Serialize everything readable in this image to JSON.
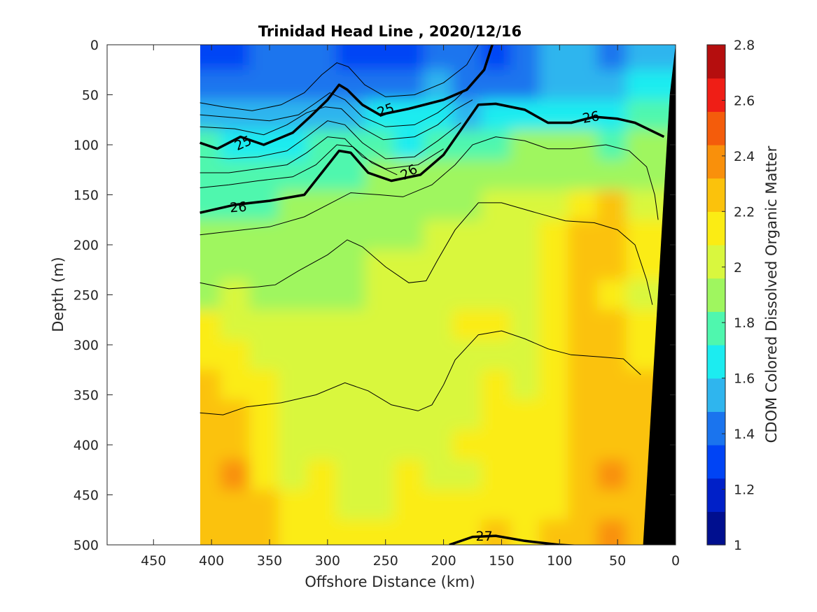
{
  "chart_data": {
    "type": "heatmap",
    "title": "Trinidad Head Line , 2020/12/16",
    "xlabel": "Offshore Distance (km)",
    "ylabel": "Depth (m)",
    "colorbar_label": "CDOM Colored Dissolved Organic Matter",
    "xlim": [
      490,
      0
    ],
    "ylim": [
      0,
      500
    ],
    "x_reversed": true,
    "y_reversed": true,
    "x_ticks": [
      450,
      400,
      350,
      300,
      250,
      200,
      150,
      100,
      50,
      0
    ],
    "x_tick_labels": [
      "450",
      "400",
      "350",
      "300",
      "250",
      "200",
      "150",
      "100",
      "50",
      "0"
    ],
    "y_ticks": [
      0,
      50,
      100,
      150,
      200,
      250,
      300,
      350,
      400,
      450,
      500
    ],
    "y_tick_labels": [
      "0",
      "50",
      "100",
      "150",
      "200",
      "250",
      "300",
      "350",
      "400",
      "450",
      "500"
    ],
    "colorbar_range": [
      1,
      2.8
    ],
    "colorbar_ticks": [
      1,
      1.2,
      1.4,
      1.6,
      1.8,
      2,
      2.2,
      2.4,
      2.6,
      2.8
    ],
    "colorbar_tick_labels": [
      "1",
      "1.2",
      "1.4",
      "1.6",
      "1.8",
      "2",
      "2.2",
      "2.4",
      "2.6",
      "2.8"
    ],
    "colorbar_colors": [
      "#000f8f",
      "#0020c8",
      "#0044f5",
      "#1a74ee",
      "#2fb5ee",
      "#1cecf0",
      "#4ff7ae",
      "#9ff65f",
      "#d9f73e",
      "#fbec14",
      "#fbc20c",
      "#f9900b",
      "#f45c0b",
      "#ef1e16",
      "#b50e0e"
    ],
    "data_extent_km": [
      410,
      0
    ],
    "value_grid": {
      "x_km": [
        405,
        380,
        355,
        330,
        305,
        280,
        255,
        230,
        205,
        180,
        155,
        130,
        105,
        80,
        55,
        30
      ],
      "depth_m": [
        10,
        40,
        70,
        100,
        130,
        160,
        190,
        220,
        250,
        280,
        310,
        340,
        370,
        400,
        430,
        460,
        490
      ],
      "values": [
        [
          1.35,
          1.35,
          1.4,
          1.45,
          1.45,
          1.35,
          1.3,
          1.35,
          1.4,
          1.4,
          1.35,
          1.4,
          1.5,
          1.5,
          1.45,
          1.5
        ],
        [
          1.4,
          1.4,
          1.4,
          1.45,
          1.45,
          1.45,
          1.45,
          1.45,
          1.5,
          1.45,
          1.45,
          1.45,
          1.5,
          1.5,
          1.55,
          1.6
        ],
        [
          1.55,
          1.5,
          1.5,
          1.55,
          1.55,
          1.55,
          1.6,
          1.6,
          1.6,
          1.55,
          1.6,
          1.65,
          1.65,
          1.7,
          1.7,
          1.75
        ],
        [
          1.75,
          1.7,
          1.7,
          1.7,
          1.75,
          1.75,
          1.75,
          1.7,
          1.75,
          1.8,
          1.8,
          1.85,
          1.85,
          1.85,
          1.8,
          1.85
        ],
        [
          1.75,
          1.75,
          1.75,
          1.8,
          1.8,
          1.8,
          1.85,
          1.85,
          1.9,
          1.9,
          1.9,
          1.95,
          1.95,
          1.95,
          1.95,
          1.95
        ],
        [
          1.8,
          1.8,
          1.8,
          1.85,
          1.85,
          1.9,
          1.9,
          1.95,
          1.95,
          1.95,
          2.0,
          2.0,
          2.05,
          2.1,
          2.2,
          2.05
        ],
        [
          1.85,
          1.9,
          1.85,
          1.9,
          1.9,
          1.9,
          1.95,
          1.95,
          2.0,
          2.0,
          2.0,
          2.05,
          2.1,
          2.2,
          2.25,
          2.1
        ],
        [
          1.9,
          1.9,
          1.9,
          1.95,
          1.9,
          1.95,
          2.0,
          2.0,
          2.0,
          2.0,
          2.0,
          2.05,
          2.1,
          2.2,
          2.2,
          2.1
        ],
        [
          1.95,
          2.0,
          1.95,
          1.95,
          1.95,
          1.95,
          2.0,
          2.0,
          2.0,
          2.0,
          2.05,
          2.05,
          2.1,
          2.25,
          2.15,
          2.05
        ],
        [
          2.1,
          2.05,
          2.0,
          2.0,
          2.0,
          2.0,
          2.0,
          2.0,
          2.05,
          2.1,
          2.15,
          2.05,
          2.15,
          2.3,
          2.2,
          2.1
        ],
        [
          2.15,
          2.1,
          2.05,
          2.0,
          2.0,
          2.05,
          2.05,
          2.0,
          2.05,
          2.05,
          2.05,
          2.05,
          2.1,
          2.3,
          2.2,
          2.15
        ],
        [
          2.2,
          2.15,
          2.1,
          2.05,
          2.05,
          2.05,
          2.0,
          2.05,
          2.05,
          2.05,
          2.1,
          2.05,
          2.1,
          2.25,
          2.25,
          2.2
        ],
        [
          2.2,
          2.25,
          2.1,
          2.05,
          2.05,
          2.05,
          2.05,
          2.05,
          2.05,
          2.05,
          2.1,
          2.1,
          2.1,
          2.2,
          2.3,
          2.2
        ],
        [
          2.25,
          2.2,
          2.1,
          2.05,
          2.05,
          2.05,
          2.05,
          2.05,
          2.05,
          2.1,
          2.1,
          2.1,
          2.15,
          2.25,
          2.25,
          2.25
        ],
        [
          2.25,
          2.35,
          2.15,
          2.05,
          2.1,
          2.05,
          2.05,
          2.1,
          2.05,
          2.05,
          2.1,
          2.1,
          2.15,
          2.3,
          2.35,
          2.25
        ],
        [
          2.2,
          2.25,
          2.2,
          2.1,
          2.1,
          2.05,
          2.05,
          2.1,
          2.1,
          2.1,
          2.15,
          2.1,
          2.15,
          2.3,
          2.3,
          2.25
        ],
        [
          2.3,
          2.3,
          2.2,
          2.15,
          2.1,
          2.1,
          2.1,
          2.1,
          2.15,
          2.15,
          2.2,
          2.15,
          2.2,
          2.3,
          2.35,
          2.3
        ]
      ]
    },
    "density_contours": {
      "bold_levels": [
        {
          "label": "25",
          "points": [
            [
              410,
              98
            ],
            [
              395,
              104
            ],
            [
              375,
              92
            ],
            [
              355,
              100
            ],
            [
              330,
              88
            ],
            [
              315,
              72
            ],
            [
              300,
              55
            ],
            [
              290,
              40
            ],
            [
              283,
              45
            ],
            [
              270,
              60
            ],
            [
              255,
              70
            ],
            [
              230,
              64
            ],
            [
              200,
              55
            ],
            [
              180,
              45
            ],
            [
              165,
              25
            ],
            [
              158,
              0
            ]
          ]
        },
        {
          "label": "26",
          "points": [
            [
              410,
              168
            ],
            [
              380,
              160
            ],
            [
              350,
              156
            ],
            [
              320,
              150
            ],
            [
              305,
              128
            ],
            [
              290,
              106
            ],
            [
              280,
              108
            ],
            [
              265,
              128
            ],
            [
              245,
              136
            ],
            [
              220,
              130
            ],
            [
              200,
              110
            ],
            [
              185,
              85
            ],
            [
              170,
              60
            ],
            [
              155,
              59
            ],
            [
              130,
              65
            ],
            [
              110,
              78
            ],
            [
              90,
              78
            ],
            [
              70,
              72
            ],
            [
              50,
              74
            ],
            [
              35,
              78
            ],
            [
              10,
              92
            ]
          ]
        },
        {
          "label": "27",
          "points": [
            [
              195,
              500
            ],
            [
              175,
              492
            ],
            [
              155,
              491
            ],
            [
              130,
              496
            ],
            [
              100,
              500
            ],
            [
              70,
              502
            ]
          ]
        }
      ],
      "thin_lines": [
        [
          [
            410,
            58
          ],
          [
            390,
            62
          ],
          [
            365,
            66
          ],
          [
            340,
            60
          ],
          [
            320,
            48
          ],
          [
            305,
            30
          ],
          [
            292,
            18
          ],
          [
            282,
            22
          ],
          [
            268,
            40
          ],
          [
            250,
            52
          ],
          [
            225,
            50
          ],
          [
            200,
            38
          ],
          [
            180,
            20
          ],
          [
            170,
            0
          ]
        ],
        [
          [
            410,
            70
          ],
          [
            380,
            73
          ],
          [
            350,
            76
          ],
          [
            325,
            70
          ],
          [
            310,
            58
          ],
          [
            298,
            48
          ],
          [
            285,
            55
          ],
          [
            270,
            72
          ],
          [
            250,
            82
          ],
          [
            225,
            80
          ],
          [
            205,
            68
          ],
          [
            190,
            55
          ],
          [
            175,
            38
          ],
          [
            165,
            25
          ]
        ],
        [
          [
            410,
            82
          ],
          [
            380,
            84
          ],
          [
            355,
            90
          ],
          [
            335,
            80
          ],
          [
            318,
            68
          ],
          [
            302,
            62
          ],
          [
            288,
            64
          ],
          [
            272,
            82
          ],
          [
            252,
            95
          ],
          [
            225,
            92
          ],
          [
            205,
            80
          ],
          [
            190,
            65
          ],
          [
            175,
            55
          ]
        ],
        [
          [
            410,
            112
          ],
          [
            385,
            114
          ],
          [
            360,
            112
          ],
          [
            335,
            106
          ],
          [
            318,
            92
          ],
          [
            300,
            76
          ],
          [
            285,
            80
          ],
          [
            270,
            98
          ],
          [
            250,
            114
          ],
          [
            225,
            112
          ],
          [
            205,
            96
          ],
          [
            185,
            78
          ]
        ],
        [
          [
            410,
            128
          ],
          [
            385,
            128
          ],
          [
            360,
            124
          ],
          [
            335,
            120
          ],
          [
            318,
            108
          ],
          [
            300,
            92
          ],
          [
            285,
            94
          ],
          [
            270,
            112
          ],
          [
            250,
            124
          ],
          [
            222,
            120
          ],
          [
            200,
            104
          ]
        ],
        [
          [
            410,
            143
          ],
          [
            385,
            140
          ],
          [
            360,
            136
          ],
          [
            330,
            132
          ],
          [
            310,
            120
          ],
          [
            292,
            100
          ],
          [
            278,
            102
          ],
          [
            262,
            118
          ],
          [
            240,
            130
          ]
        ],
        [
          [
            410,
            190
          ],
          [
            380,
            186
          ],
          [
            350,
            182
          ],
          [
            320,
            172
          ],
          [
            300,
            160
          ],
          [
            280,
            148
          ],
          [
            255,
            150
          ],
          [
            235,
            152
          ],
          [
            210,
            140
          ],
          [
            190,
            120
          ],
          [
            175,
            100
          ],
          [
            155,
            92
          ],
          [
            130,
            96
          ],
          [
            110,
            104
          ],
          [
            90,
            104
          ],
          [
            60,
            100
          ],
          [
            40,
            106
          ],
          [
            25,
            122
          ],
          [
            18,
            150
          ],
          [
            15,
            175
          ]
        ],
        [
          [
            410,
            238
          ],
          [
            385,
            244
          ],
          [
            360,
            242
          ],
          [
            345,
            240
          ],
          [
            325,
            226
          ],
          [
            300,
            210
          ],
          [
            283,
            195
          ],
          [
            270,
            202
          ],
          [
            250,
            222
          ],
          [
            230,
            238
          ],
          [
            215,
            236
          ],
          [
            205,
            215
          ],
          [
            190,
            185
          ],
          [
            170,
            158
          ],
          [
            150,
            158
          ],
          [
            120,
            168
          ],
          [
            95,
            176
          ],
          [
            70,
            178
          ],
          [
            50,
            185
          ],
          [
            35,
            200
          ],
          [
            25,
            235
          ],
          [
            20,
            260
          ]
        ],
        [
          [
            410,
            368
          ],
          [
            390,
            370
          ],
          [
            370,
            362
          ],
          [
            340,
            358
          ],
          [
            310,
            350
          ],
          [
            285,
            338
          ],
          [
            265,
            346
          ],
          [
            245,
            360
          ],
          [
            222,
            366
          ],
          [
            210,
            360
          ],
          [
            200,
            340
          ],
          [
            190,
            315
          ],
          [
            170,
            290
          ],
          [
            150,
            286
          ],
          [
            130,
            294
          ],
          [
            110,
            304
          ],
          [
            90,
            310
          ],
          [
            65,
            312
          ],
          [
            45,
            314
          ],
          [
            30,
            330
          ]
        ]
      ],
      "label_positions": [
        {
          "label": "25",
          "x": 250,
          "y": 65,
          "rot": -20
        },
        {
          "label": "25",
          "x": 373,
          "y": 98,
          "rot": -25
        },
        {
          "label": "26",
          "x": 230,
          "y": 127,
          "rot": -30
        },
        {
          "label": "26",
          "x": 73,
          "y": 72,
          "rot": -10
        },
        {
          "label": "26",
          "x": 377,
          "y": 162,
          "rot": -4
        },
        {
          "label": "27",
          "x": 165,
          "y": 491,
          "rot": 0
        }
      ]
    },
    "bathymetry": {
      "color": "#000000",
      "points": [
        [
          0,
          0
        ],
        [
          0,
          500
        ],
        [
          28,
          500
        ],
        [
          5,
          50
        ]
      ]
    }
  }
}
